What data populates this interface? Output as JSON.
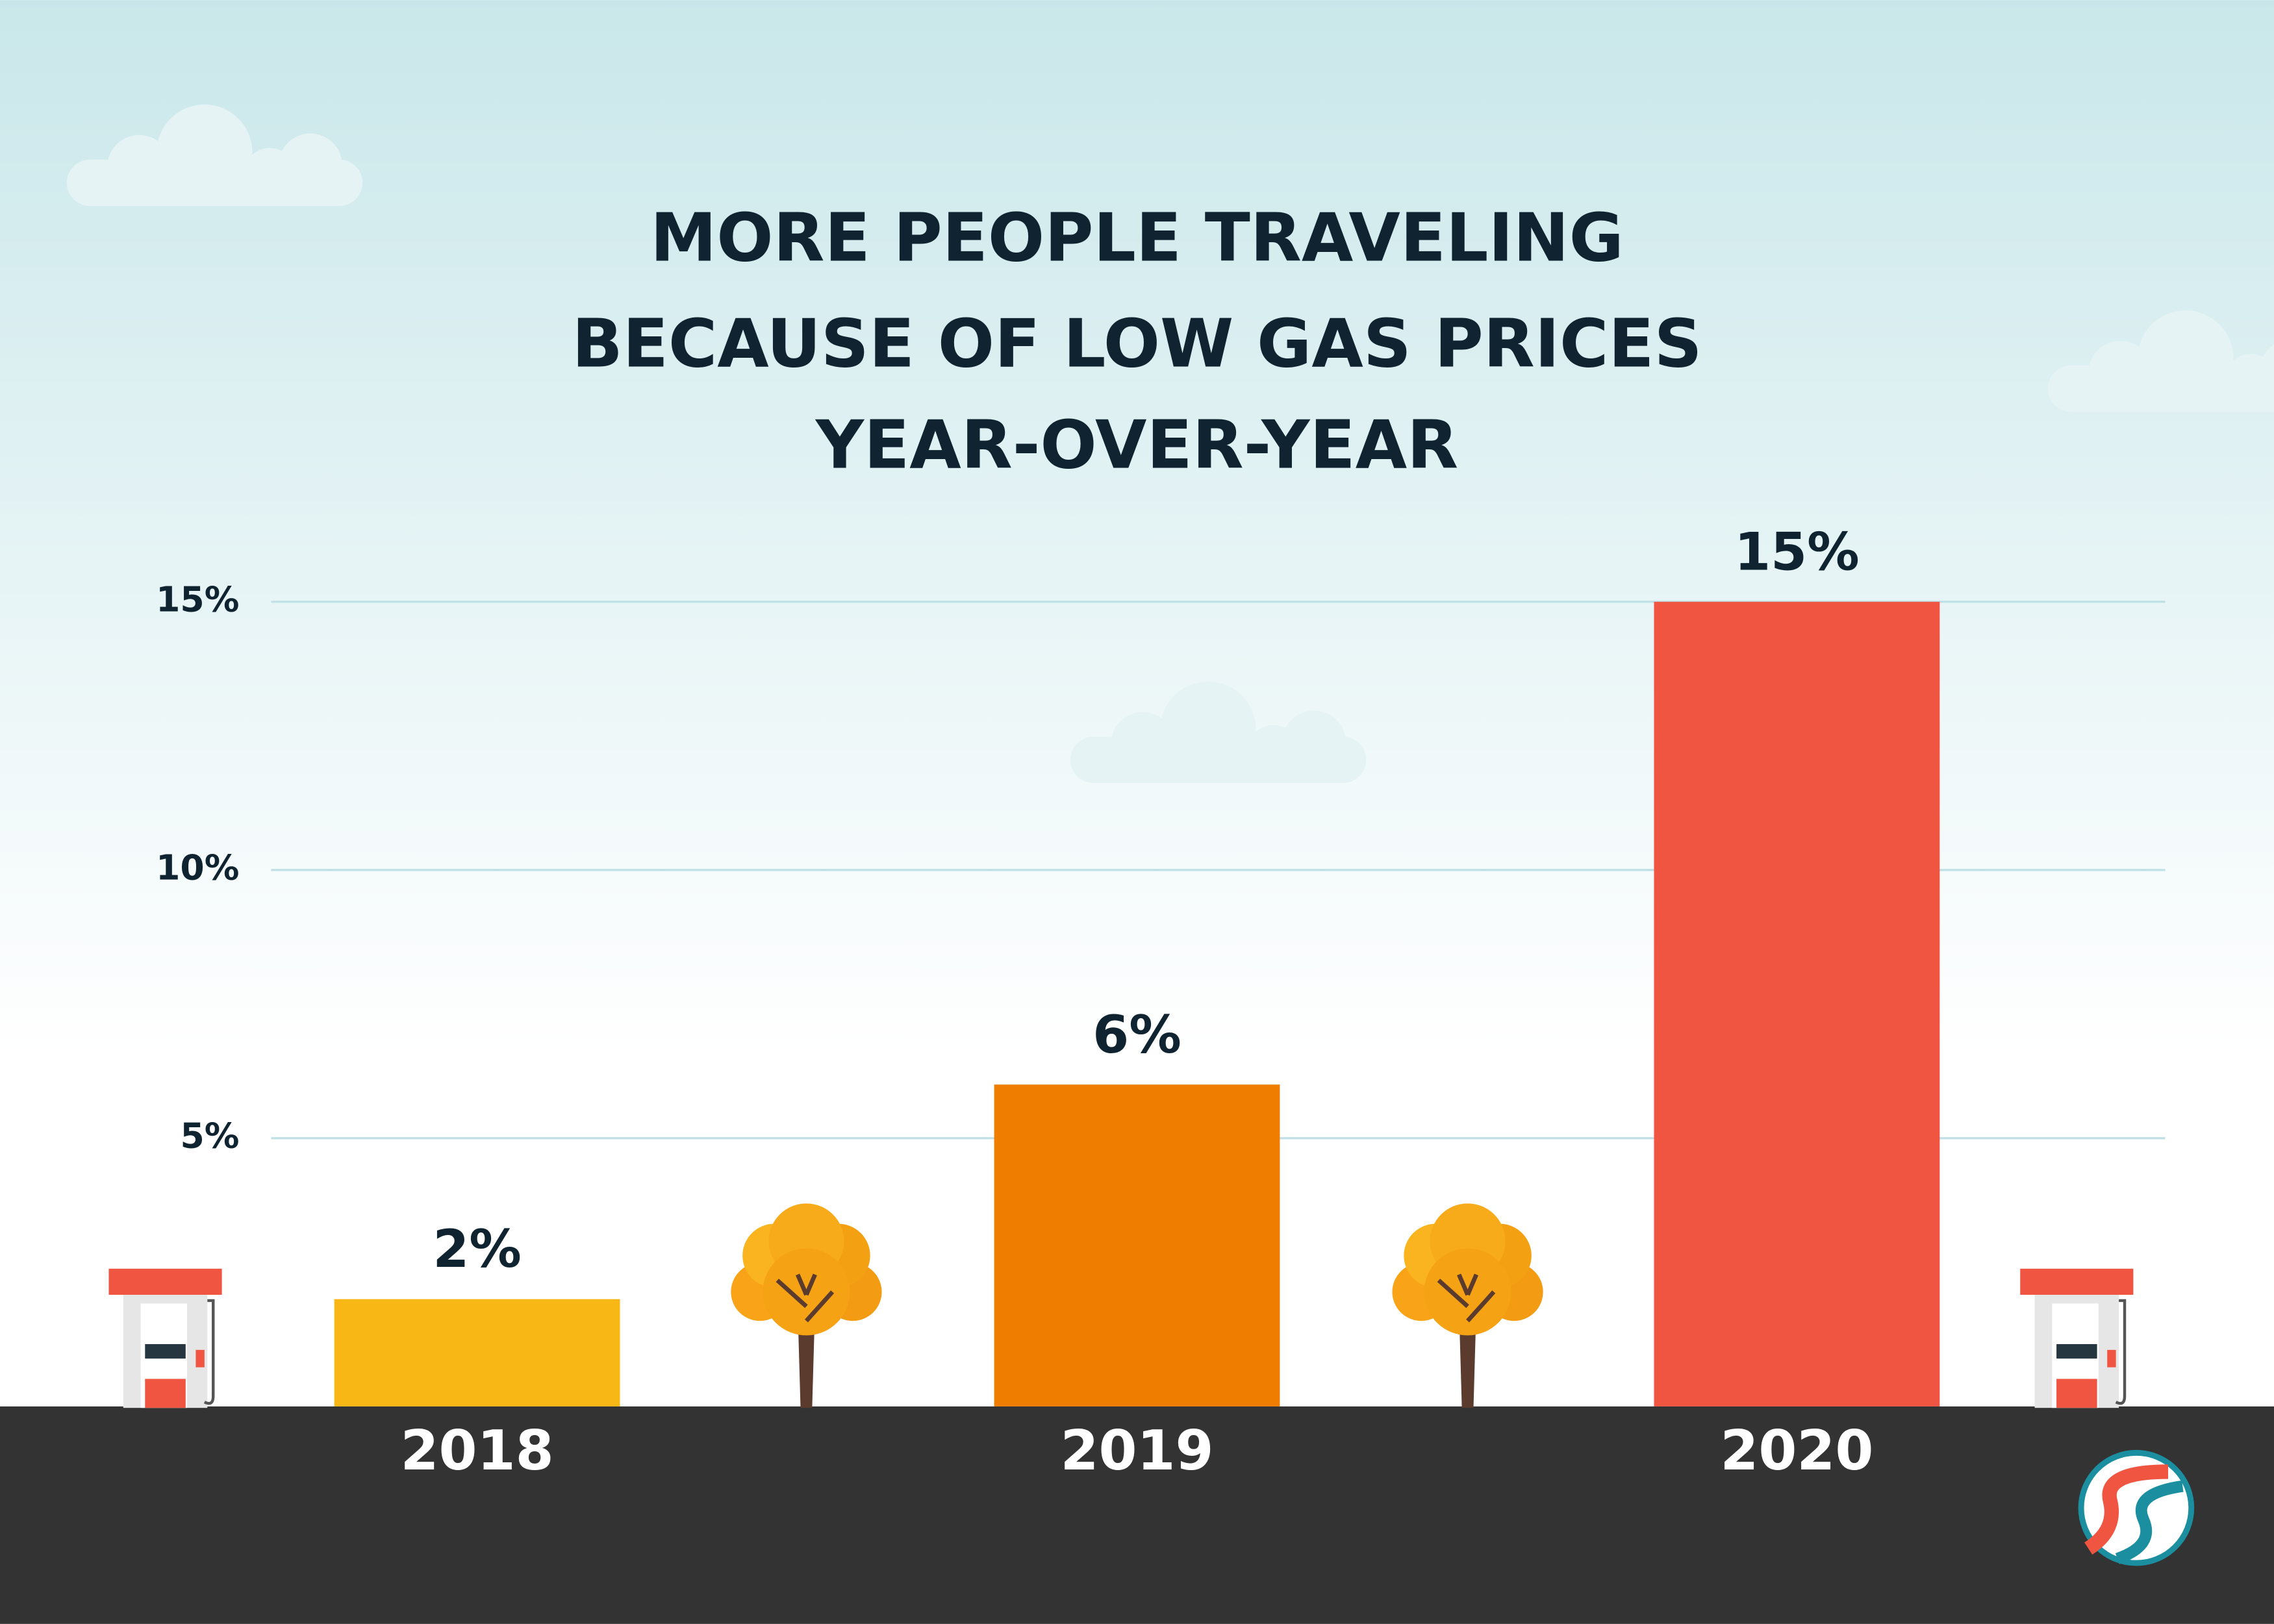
{
  "chart_data": {
    "type": "bar",
    "title": [
      "MORE PEOPLE TRAVELING",
      "BECAUSE OF LOW GAS PRICES",
      "YEAR-OVER-YEAR"
    ],
    "categories": [
      "2018",
      "2019",
      "2020"
    ],
    "values": [
      2,
      6,
      15
    ],
    "value_labels": [
      "2%",
      "6%",
      "15%"
    ],
    "colors": [
      "#f9b715",
      "#ee7d00",
      "#ef5541"
    ],
    "ylim": [
      0,
      15
    ],
    "yticks": [
      {
        "value": 5,
        "label": "5%"
      },
      {
        "value": 10,
        "label": "10%"
      },
      {
        "value": 15,
        "label": "15%"
      }
    ],
    "grid": true
  }
}
